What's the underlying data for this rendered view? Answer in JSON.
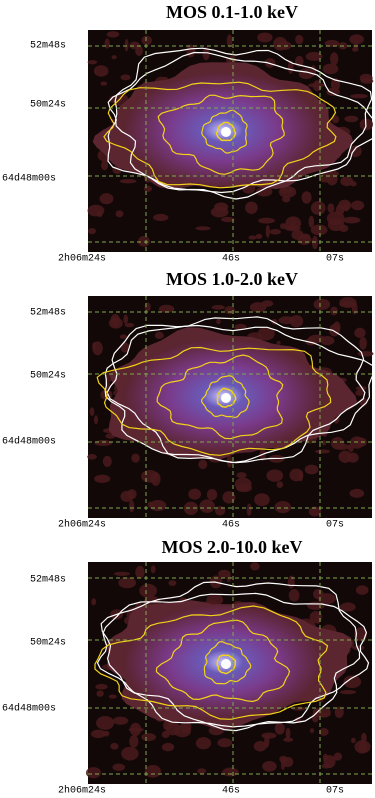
{
  "panels": [
    {
      "title": "MOS 0.1-1.0 keV",
      "y_labels": [
        "52m48s",
        "50m24s",
        "64d48m00s"
      ],
      "x_labels": [
        "2h06m24s",
        "46s",
        "07s"
      ]
    },
    {
      "title": "MOS 1.0-2.0 keV",
      "y_labels": [
        "52m48s",
        "50m24s",
        "64d48m00s"
      ],
      "x_labels": [
        "2h06m24s",
        "46s",
        "07s"
      ]
    },
    {
      "title": "MOS 2.0-10.0 keV",
      "y_labels": [
        "52m48s",
        "50m24s",
        "64d48m00s"
      ],
      "x_labels": [
        "2h06m24s",
        "46s",
        "07s"
      ]
    }
  ]
}
